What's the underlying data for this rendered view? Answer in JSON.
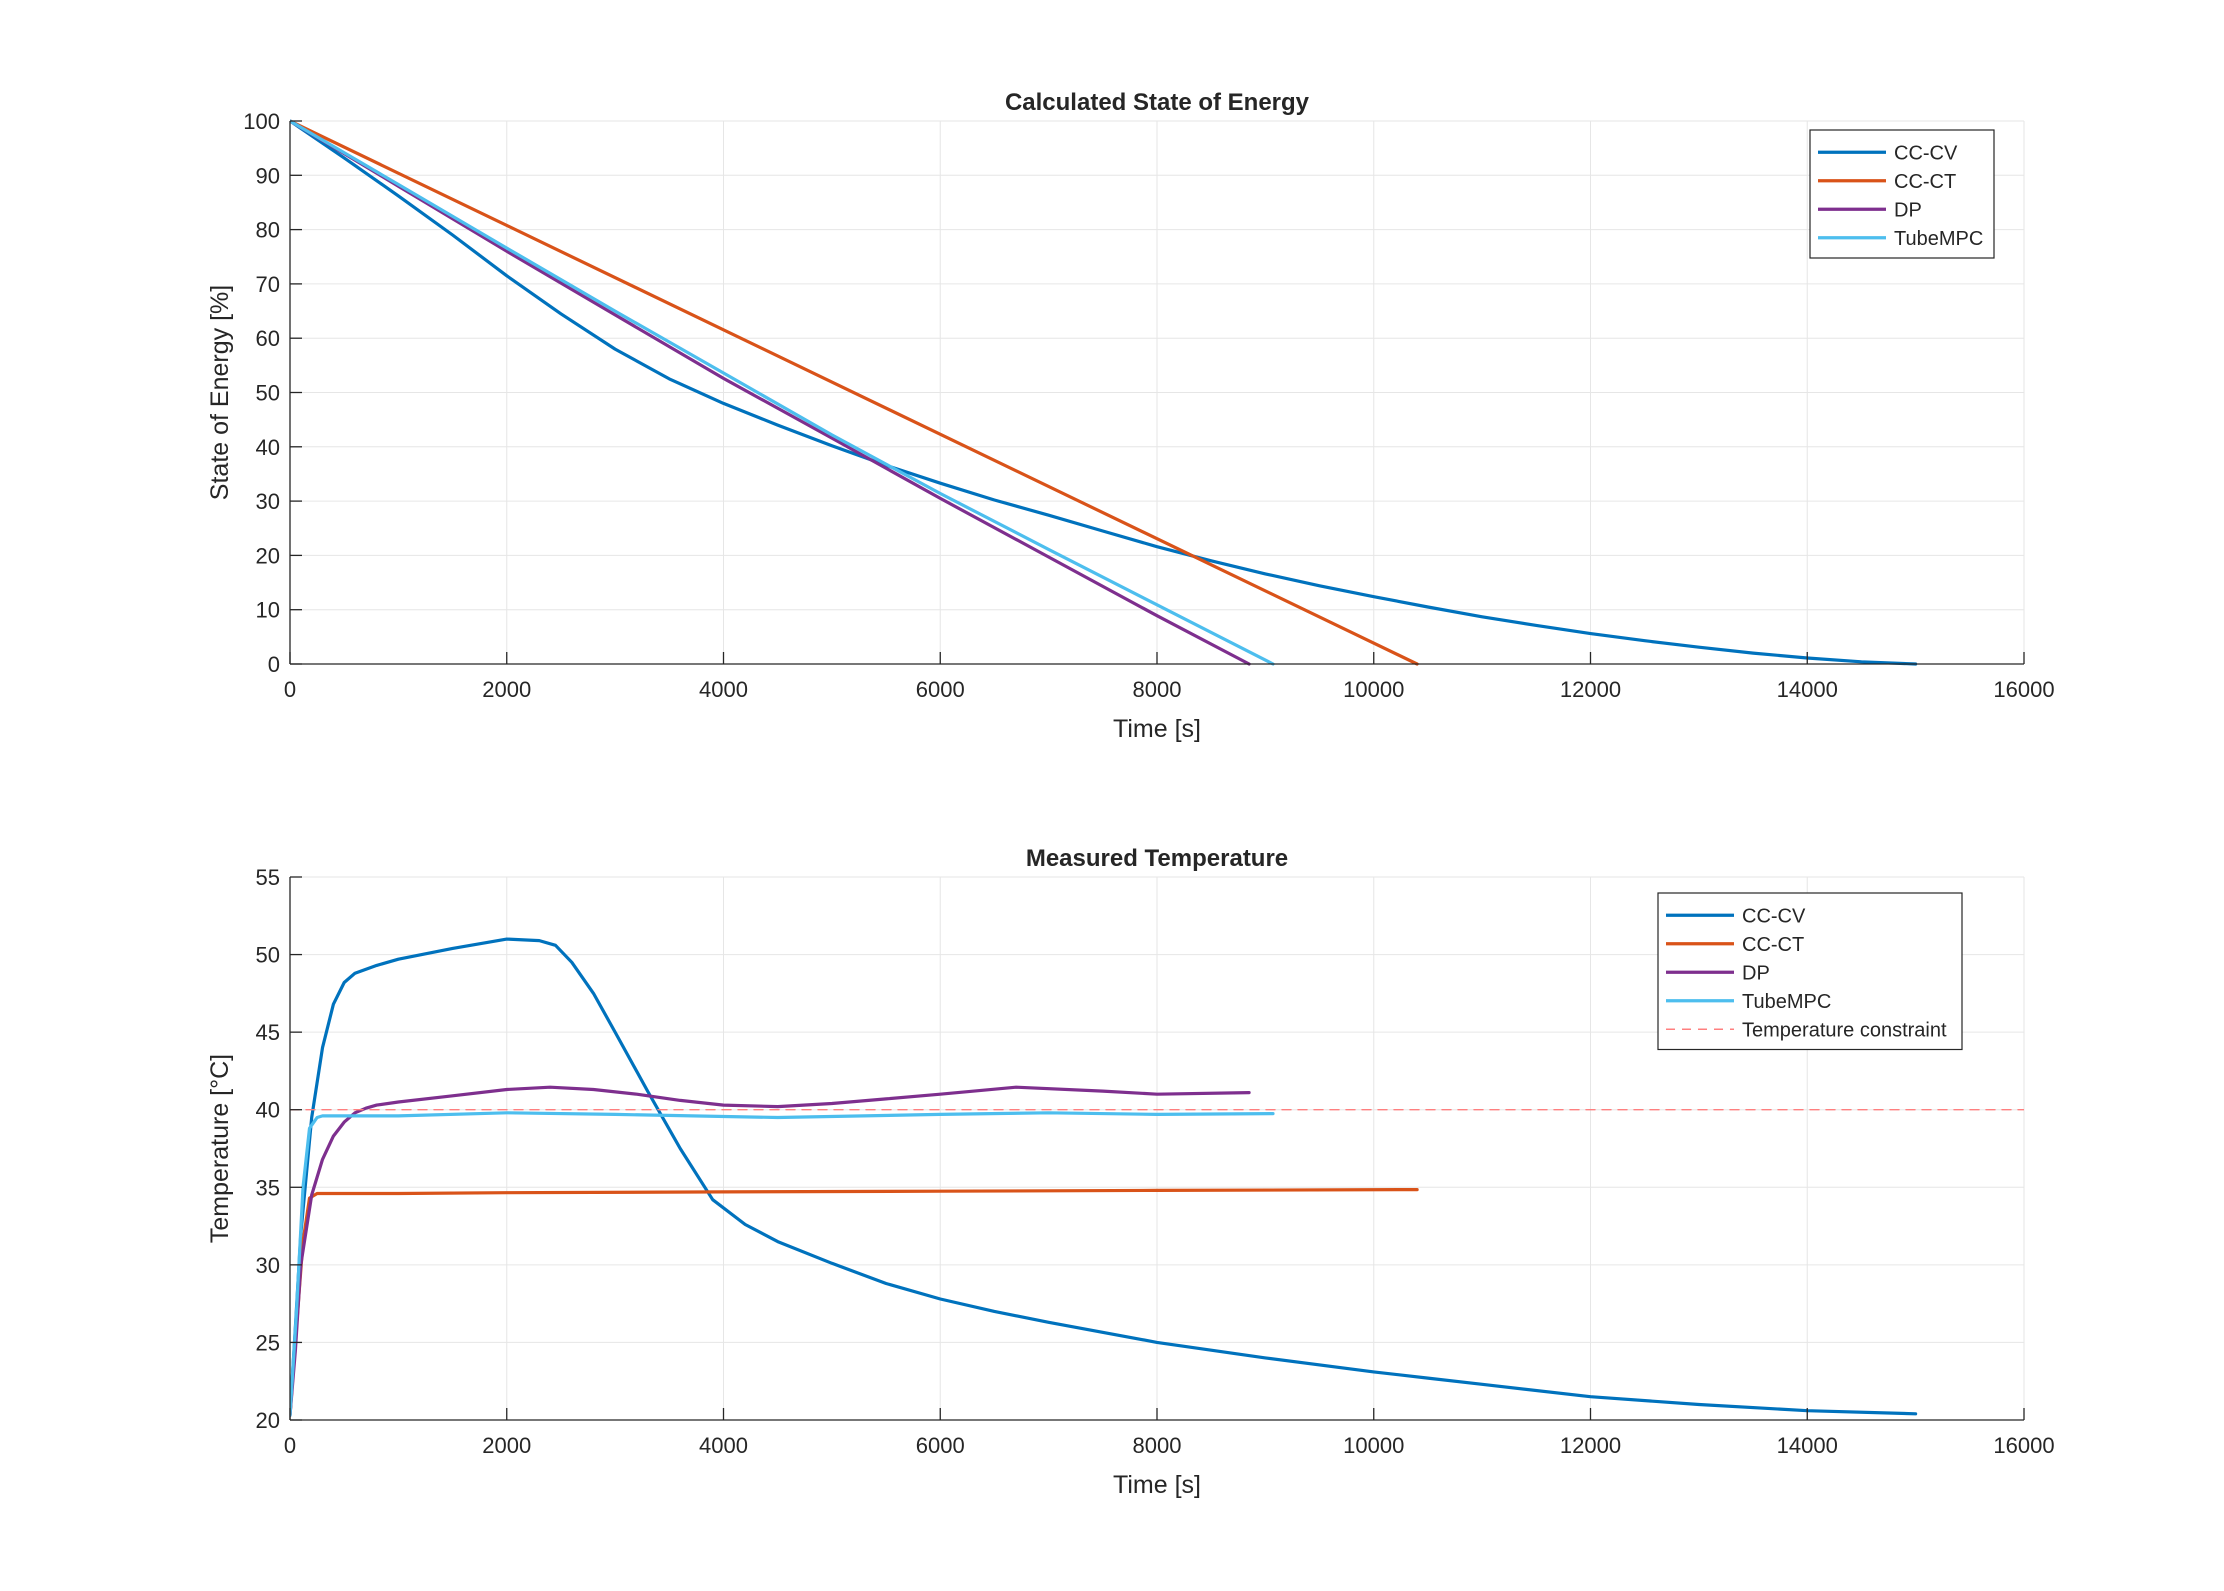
{
  "colors": {
    "cc_cv": "#0072BD",
    "cc_ct": "#D95319",
    "dp": "#7E2F8E",
    "tube_mpc": "#4DBEEE",
    "constraint": "#FF7F7F",
    "grid": "#E6E6E6",
    "axis": "#262626"
  },
  "chart_data": [
    {
      "type": "line",
      "title": "Calculated State of Energy",
      "xlabel": "Time [s]",
      "ylabel": "State of Energy [%]",
      "xlim": [
        0,
        16000
      ],
      "ylim": [
        0,
        100
      ],
      "xticks": [
        0,
        2000,
        4000,
        6000,
        8000,
        10000,
        12000,
        14000,
        16000
      ],
      "yticks": [
        0,
        10,
        20,
        30,
        40,
        50,
        60,
        70,
        80,
        90,
        100
      ],
      "grid": true,
      "legend_location": "top-right",
      "series": [
        {
          "name": "CC-CV",
          "color_key": "cc_cv",
          "x": [
            0,
            500,
            1000,
            1500,
            2000,
            2500,
            3000,
            3500,
            4000,
            4500,
            5000,
            5500,
            6000,
            6500,
            7000,
            7500,
            8000,
            8500,
            9000,
            9500,
            10000,
            10500,
            11000,
            11500,
            12000,
            12500,
            13000,
            13500,
            14000,
            14500,
            15000
          ],
          "y": [
            100,
            93.2,
            86.2,
            79,
            71.5,
            64.5,
            58,
            52.5,
            48,
            44,
            40.2,
            36.6,
            33.3,
            30.2,
            27.4,
            24.5,
            21.6,
            19,
            16.6,
            14.4,
            12.4,
            10.5,
            8.7,
            7.1,
            5.6,
            4.3,
            3.1,
            2,
            1.1,
            0.4,
            0
          ]
        },
        {
          "name": "CC-CT",
          "color_key": "cc_ct",
          "x": [
            0,
            10400
          ],
          "y": [
            100,
            0
          ]
        },
        {
          "name": "DP",
          "color_key": "dp",
          "x": [
            0,
            1000,
            2000,
            3000,
            4000,
            5000,
            6000,
            7000,
            8000,
            8850
          ],
          "y": [
            100,
            88,
            76,
            64.3,
            52.6,
            41.6,
            30.5,
            19.7,
            8.9,
            0
          ]
        },
        {
          "name": "TubeMPC",
          "color_key": "tube_mpc",
          "x": [
            0,
            1000,
            2000,
            3000,
            4000,
            5000,
            6000,
            7000,
            8000,
            9070
          ],
          "y": [
            100,
            88.3,
            76.6,
            65,
            53.6,
            42.2,
            31.4,
            21.1,
            10.9,
            0
          ]
        }
      ]
    },
    {
      "type": "line",
      "title": "Measured Temperature",
      "xlabel": "Time [s]",
      "ylabel": "Temperature [°C]",
      "xlim": [
        0,
        16000
      ],
      "ylim": [
        20,
        55
      ],
      "xticks": [
        0,
        2000,
        4000,
        6000,
        8000,
        10000,
        12000,
        14000,
        16000
      ],
      "yticks": [
        20,
        25,
        30,
        35,
        40,
        45,
        50,
        55
      ],
      "grid": true,
      "legend_location": "top-right",
      "series": [
        {
          "name": "CC-CV",
          "color_key": "cc_cv",
          "x": [
            0,
            50,
            100,
            200,
            300,
            400,
            500,
            600,
            800,
            1000,
            1500,
            2000,
            2300,
            2450,
            2600,
            2800,
            3000,
            3300,
            3600,
            3900,
            4200,
            4500,
            5000,
            5500,
            6000,
            6500,
            7000,
            8000,
            9000,
            10000,
            10500,
            11000,
            12000,
            13000,
            14000,
            15000
          ],
          "y": [
            20.3,
            26,
            32,
            39.5,
            44,
            46.8,
            48.2,
            48.8,
            49.3,
            49.7,
            50.4,
            51,
            50.9,
            50.6,
            49.5,
            47.5,
            45,
            41.2,
            37.5,
            34.2,
            32.6,
            31.5,
            30.1,
            28.8,
            27.8,
            27,
            26.3,
            25,
            24,
            23.1,
            22.7,
            22.3,
            21.5,
            21,
            20.6,
            20.4
          ]
        },
        {
          "name": "CC-CT",
          "color_key": "cc_ct",
          "x": [
            0,
            60,
            120,
            180,
            250,
            1000,
            2000,
            4000,
            6000,
            8000,
            10400
          ],
          "y": [
            20.3,
            26,
            31.5,
            34.3,
            34.6,
            34.6,
            34.65,
            34.7,
            34.75,
            34.8,
            34.85
          ]
        },
        {
          "name": "DP",
          "color_key": "dp",
          "x": [
            0,
            50,
            100,
            200,
            300,
            400,
            500,
            600,
            700,
            800,
            1000,
            1500,
            2000,
            2400,
            2800,
            3200,
            3600,
            4000,
            4500,
            5000,
            5500,
            6000,
            6700,
            7500,
            8000,
            8850
          ],
          "y": [
            20.3,
            24.5,
            30,
            34.5,
            36.8,
            38.3,
            39.2,
            39.8,
            40.1,
            40.3,
            40.5,
            40.9,
            41.3,
            41.45,
            41.3,
            41,
            40.6,
            40.3,
            40.2,
            40.4,
            40.7,
            41,
            41.45,
            41.2,
            41,
            41.1
          ]
        },
        {
          "name": "TubeMPC",
          "color_key": "tube_mpc",
          "x": [
            0,
            60,
            120,
            180,
            250,
            300,
            500,
            1000,
            2000,
            3000,
            4500,
            6000,
            7000,
            8000,
            9070
          ],
          "y": [
            20.3,
            27,
            35,
            38.8,
            39.5,
            39.6,
            39.6,
            39.6,
            39.8,
            39.7,
            39.5,
            39.7,
            39.8,
            39.7,
            39.75
          ]
        },
        {
          "name": "Temperature constraint",
          "color_key": "constraint",
          "dashed": true,
          "x": [
            0,
            16000
          ],
          "y": [
            40,
            40
          ]
        }
      ]
    }
  ]
}
